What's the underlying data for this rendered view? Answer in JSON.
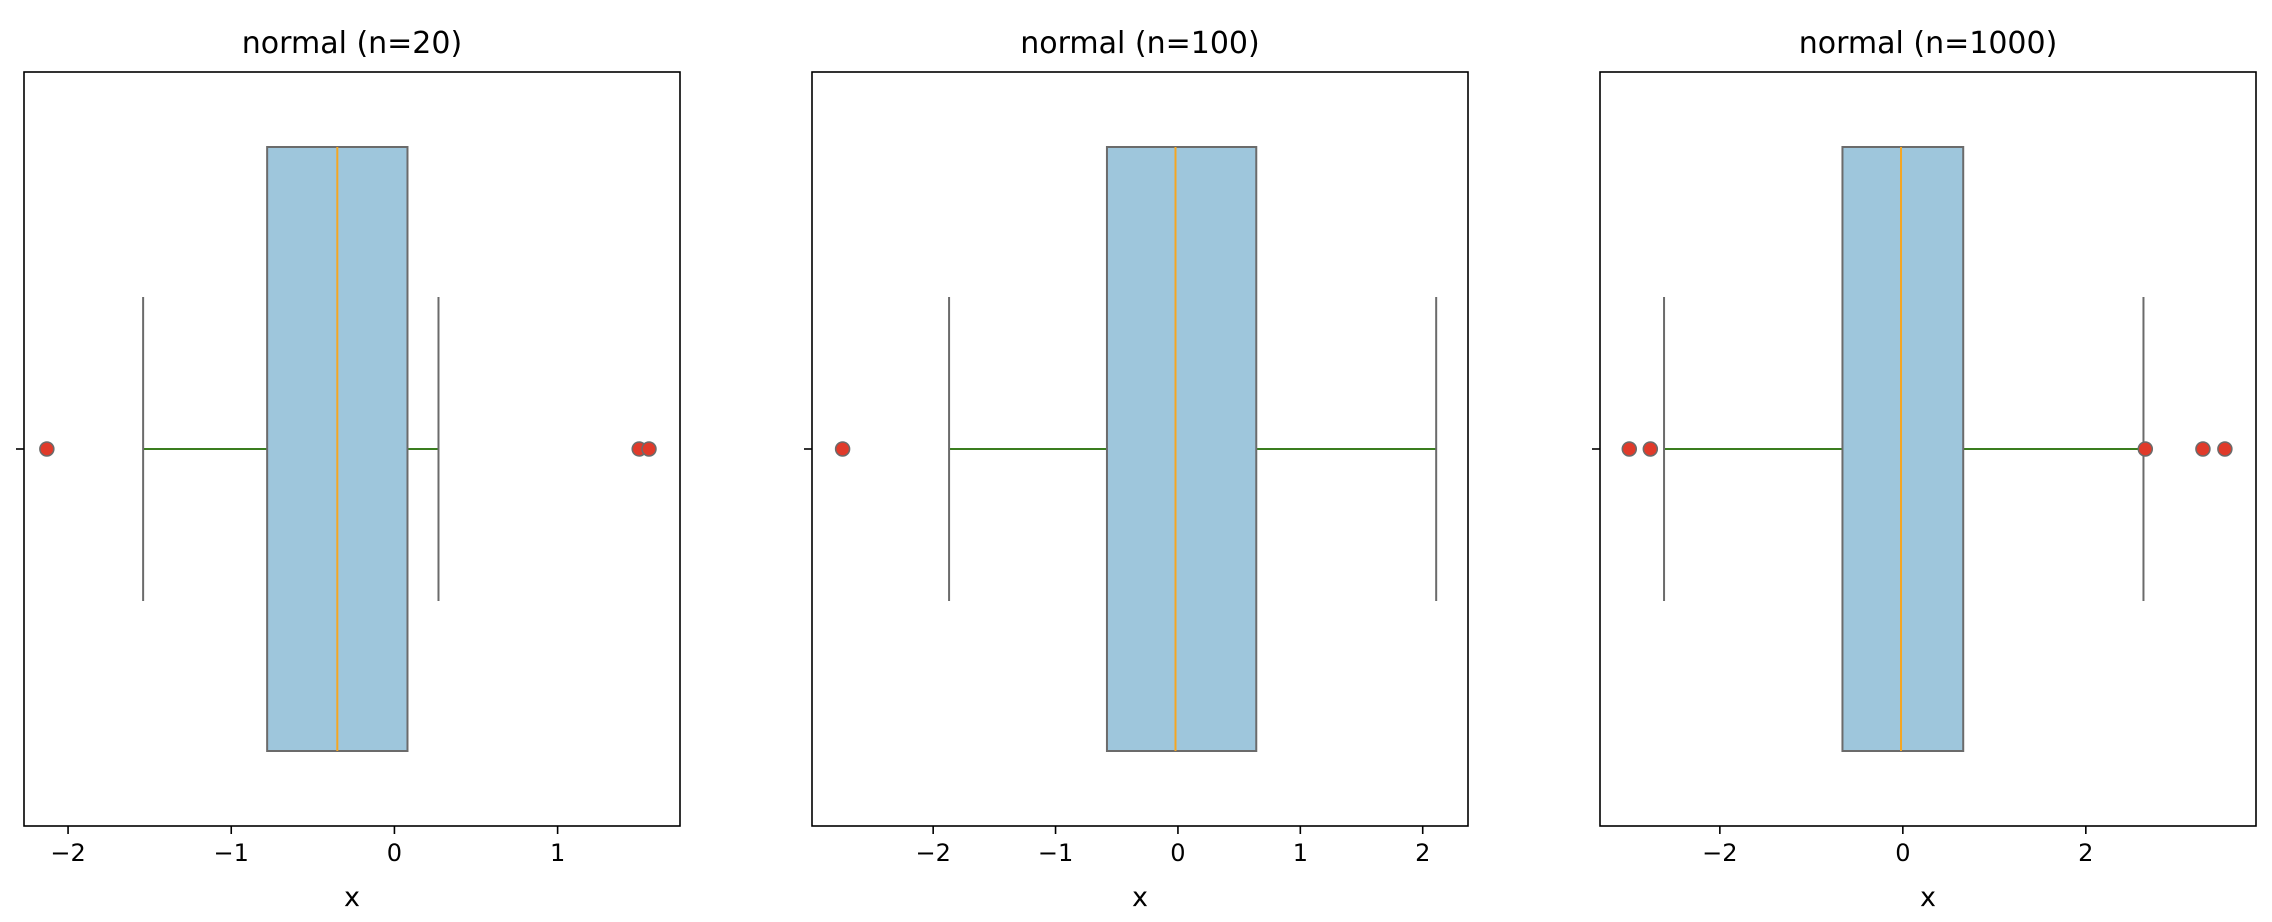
{
  "colors": {
    "box_fill": "#9ec6dc",
    "box_edge": "#6b6b6b",
    "median": "#f5a623",
    "whisker": "#3a7d1f",
    "cap": "#6b6b6b",
    "flier_fill": "#e03a2a",
    "flier_edge": "#6b6b6b",
    "axes": "#000000"
  },
  "chart_data": [
    {
      "type": "box",
      "title": "normal (n=20)",
      "xlabel": "x",
      "ylabel": "",
      "xlim": [
        -2.27,
        1.75
      ],
      "xticks": [
        -2,
        -1,
        0,
        1
      ],
      "xtick_labels": [
        "−2",
        "−1",
        "0",
        "1"
      ],
      "q1": -0.78,
      "median": -0.35,
      "q3": 0.08,
      "whisker_low": -1.54,
      "whisker_high": 0.27,
      "fliers": [
        -2.13,
        1.5,
        1.56
      ],
      "grid": false
    },
    {
      "type": "box",
      "title": "normal (n=100)",
      "xlabel": "x",
      "ylabel": "",
      "xlim": [
        -2.99,
        2.37
      ],
      "xticks": [
        -2,
        -1,
        0,
        1,
        2
      ],
      "xtick_labels": [
        "−2",
        "−1",
        "0",
        "1",
        "2"
      ],
      "q1": -0.58,
      "median": -0.02,
      "q3": 0.64,
      "whisker_low": -1.87,
      "whisker_high": 2.11,
      "fliers": [
        -2.74
      ],
      "grid": false
    },
    {
      "type": "box",
      "title": "normal (n=1000)",
      "xlabel": "x",
      "ylabel": "",
      "xlim": [
        -3.31,
        3.86
      ],
      "xticks": [
        -2,
        0,
        2
      ],
      "xtick_labels": [
        "−2",
        "0",
        "2"
      ],
      "q1": -0.66,
      "median": -0.02,
      "q3": 0.66,
      "whisker_low": -2.61,
      "whisker_high": 2.63,
      "fliers": [
        -2.99,
        -2.76,
        2.65,
        3.28,
        3.52
      ],
      "grid": false
    }
  ]
}
